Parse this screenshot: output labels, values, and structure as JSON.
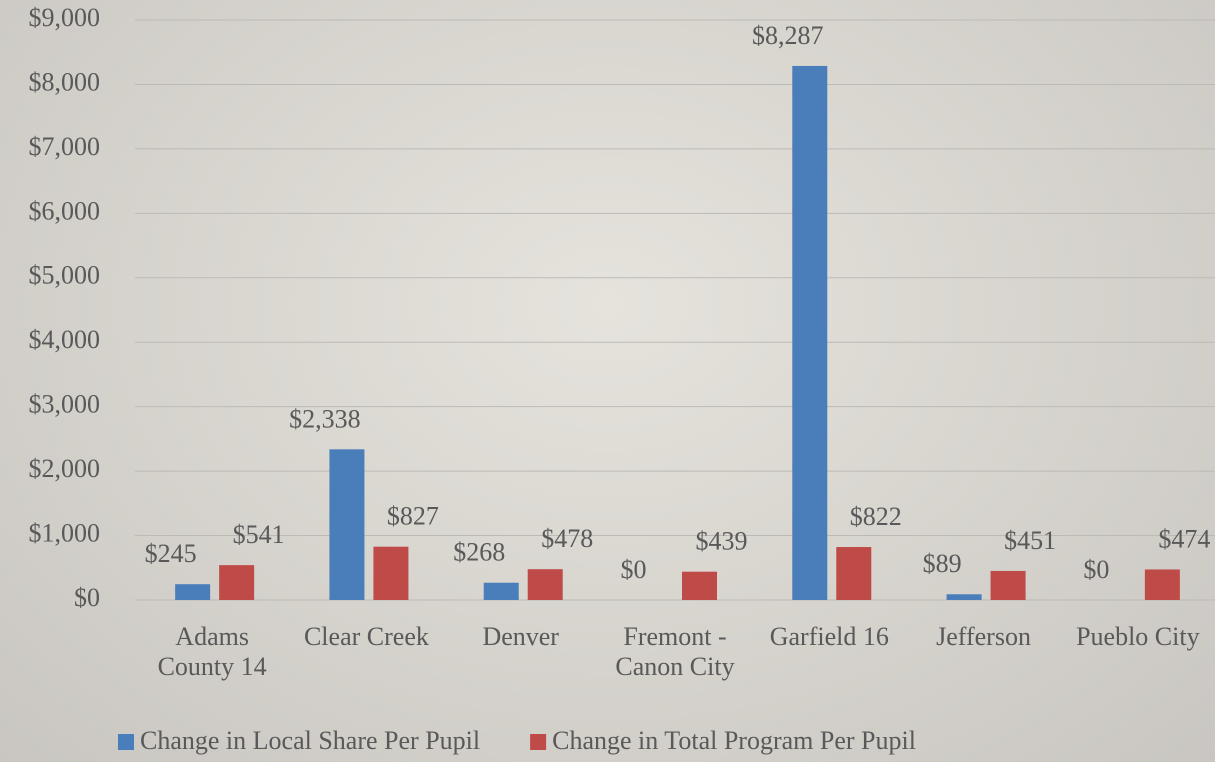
{
  "chart_data": {
    "type": "bar",
    "categories": [
      "Adams County 14",
      "Clear Creek",
      "Denver",
      "Fremont - Canon City",
      "Garfield 16",
      "Jefferson",
      "Pueblo City"
    ],
    "series": [
      {
        "name": "Change in Local Share Per Pupil",
        "color": "#4a7ebb",
        "values": [
          245,
          2338,
          268,
          0,
          8287,
          89,
          0
        ],
        "value_labels": [
          "$245",
          "$2,338",
          "$268",
          "$0",
          "$8,287",
          "$89",
          "$0"
        ]
      },
      {
        "name": "Change in Total Program Per Pupil",
        "color": "#be4b48",
        "values": [
          541,
          827,
          478,
          439,
          822,
          451,
          474
        ],
        "value_labels": [
          "$541",
          "$827",
          "$478",
          "$439",
          "$822",
          "$451",
          "$474"
        ]
      }
    ],
    "ylim": [
      0,
      9000
    ],
    "yticks": [
      {
        "value": 0,
        "label": "$0"
      },
      {
        "value": 1000,
        "label": "$1,000"
      },
      {
        "value": 2000,
        "label": "$2,000"
      },
      {
        "value": 3000,
        "label": "$3,000"
      },
      {
        "value": 4000,
        "label": "$4,000"
      },
      {
        "value": 5000,
        "label": "$5,000"
      },
      {
        "value": 6000,
        "label": "$6,000"
      },
      {
        "value": 7000,
        "label": "$7,000"
      },
      {
        "value": 8000,
        "label": "$8,000"
      },
      {
        "value": 9000,
        "label": "$9,000"
      }
    ],
    "grid": true,
    "legend": "bottom"
  }
}
